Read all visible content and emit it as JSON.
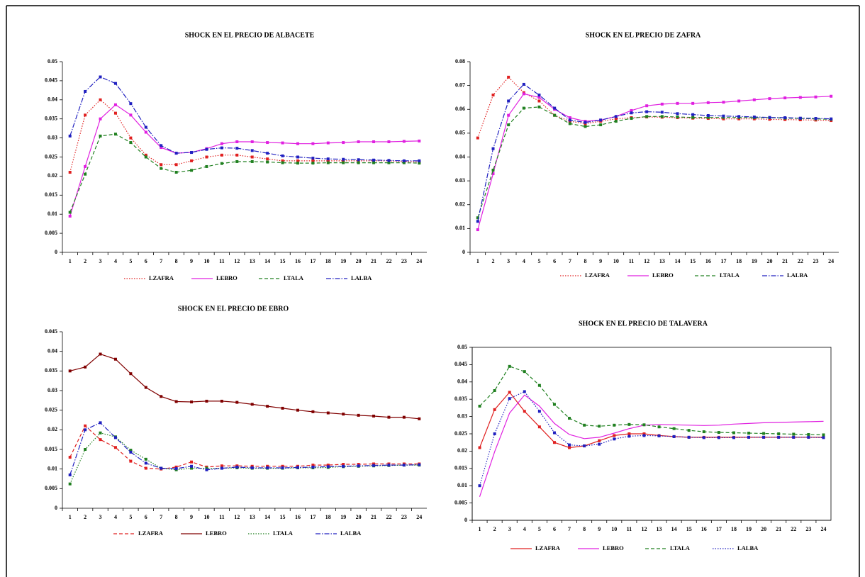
{
  "chart_data": [
    {
      "type": "line",
      "title": "SHOCK EN EL PRECIO DE ALBACETE",
      "categories": [
        "1",
        "2",
        "3",
        "4",
        "5",
        "6",
        "7",
        "8",
        "9",
        "10",
        "11",
        "12",
        "13",
        "14",
        "15",
        "16",
        "17",
        "18",
        "19",
        "20",
        "21",
        "22",
        "23",
        "24"
      ],
      "ylim": [
        0,
        0.05
      ],
      "yticks": [
        0,
        0.005,
        0.01,
        0.015,
        0.02,
        0.025,
        0.03,
        0.035,
        0.04,
        0.045,
        0.05
      ],
      "series": [
        {
          "name": "LZAFRA",
          "color": "#e02020",
          "style": "dotted",
          "markers": true,
          "values": [
            0.021,
            0.036,
            0.04,
            0.0365,
            0.03,
            0.0255,
            0.023,
            0.023,
            0.024,
            0.025,
            0.0255,
            0.0255,
            0.025,
            0.0245,
            0.024,
            0.024,
            0.024,
            0.024,
            0.024,
            0.024,
            0.024,
            0.024,
            0.0238,
            0.0237
          ]
        },
        {
          "name": "LEBRO",
          "color": "#e020e0",
          "style": "solid",
          "markers": true,
          "values": [
            0.0095,
            0.0225,
            0.035,
            0.0387,
            0.036,
            0.0315,
            0.0275,
            0.026,
            0.0262,
            0.0272,
            0.0285,
            0.029,
            0.029,
            0.0288,
            0.0287,
            0.0285,
            0.0285,
            0.0287,
            0.0288,
            0.029,
            0.029,
            0.029,
            0.0291,
            0.0292
          ]
        },
        {
          "name": "LTALA",
          "color": "#208020",
          "style": "dashed",
          "markers": true,
          "values": [
            0.0105,
            0.0205,
            0.0305,
            0.031,
            0.0288,
            0.025,
            0.022,
            0.021,
            0.0215,
            0.0225,
            0.0233,
            0.0238,
            0.0238,
            0.0237,
            0.0235,
            0.0234,
            0.0234,
            0.0235,
            0.0235,
            0.0235,
            0.0235,
            0.0235,
            0.0235,
            0.0234
          ]
        },
        {
          "name": "LALBA",
          "color": "#2020c0",
          "style": "dashdot",
          "markers": true,
          "values": [
            0.0305,
            0.0422,
            0.046,
            0.0443,
            0.039,
            0.0328,
            0.028,
            0.026,
            0.0262,
            0.027,
            0.0274,
            0.0273,
            0.0267,
            0.026,
            0.0253,
            0.025,
            0.0247,
            0.0245,
            0.0244,
            0.0243,
            0.0242,
            0.0241,
            0.024,
            0.024
          ]
        }
      ]
    },
    {
      "type": "line",
      "title": "SHOCK EN EL PRECIO DE ZAFRA",
      "categories": [
        "1",
        "2",
        "3",
        "4",
        "5",
        "6",
        "7",
        "8",
        "9",
        "10",
        "11",
        "12",
        "13",
        "14",
        "15",
        "16",
        "17",
        "18",
        "19",
        "20",
        "21",
        "22",
        "23",
        "24"
      ],
      "ylim": [
        0,
        0.08
      ],
      "yticks": [
        0,
        0.01,
        0.02,
        0.03,
        0.04,
        0.05,
        0.06,
        0.07,
        0.08
      ],
      "series": [
        {
          "name": "LZAFRA",
          "color": "#e02020",
          "style": "dotted",
          "markers": true,
          "values": [
            0.048,
            0.066,
            0.0735,
            0.067,
            0.0635,
            0.0575,
            0.055,
            0.054,
            0.055,
            0.056,
            0.0565,
            0.0568,
            0.0567,
            0.0565,
            0.0563,
            0.0562,
            0.056,
            0.056,
            0.056,
            0.0558,
            0.0557,
            0.0556,
            0.0555,
            0.0553
          ]
        },
        {
          "name": "LEBRO",
          "color": "#e020e0",
          "style": "solid",
          "markers": true,
          "values": [
            0.0095,
            0.033,
            0.0575,
            0.0665,
            0.065,
            0.06,
            0.0565,
            0.055,
            0.0555,
            0.057,
            0.0595,
            0.0615,
            0.0622,
            0.0625,
            0.0625,
            0.0628,
            0.063,
            0.0635,
            0.064,
            0.0645,
            0.0648,
            0.065,
            0.0652,
            0.0655
          ]
        },
        {
          "name": "LTALA",
          "color": "#208020",
          "style": "dashed",
          "markers": true,
          "values": [
            0.0145,
            0.0345,
            0.0535,
            0.0605,
            0.061,
            0.0575,
            0.054,
            0.0528,
            0.0535,
            0.055,
            0.0562,
            0.057,
            0.057,
            0.0568,
            0.0566,
            0.0566,
            0.0566,
            0.0566,
            0.0565,
            0.0565,
            0.0563,
            0.0562,
            0.056,
            0.0558
          ]
        },
        {
          "name": "LALBA",
          "color": "#2020c0",
          "style": "dashdot",
          "markers": true,
          "values": [
            0.013,
            0.0435,
            0.0635,
            0.0705,
            0.066,
            0.0605,
            0.0555,
            0.0545,
            0.0555,
            0.057,
            0.0585,
            0.059,
            0.0588,
            0.0582,
            0.0578,
            0.0574,
            0.0572,
            0.057,
            0.0568,
            0.0566,
            0.0565,
            0.0563,
            0.0562,
            0.056
          ]
        }
      ]
    },
    {
      "type": "line",
      "title": "SHOCK EN EL PRECIO DE EBRO",
      "categories": [
        "1",
        "2",
        "3",
        "4",
        "5",
        "6",
        "7",
        "8",
        "9",
        "10",
        "11",
        "12",
        "13",
        "14",
        "15",
        "16",
        "17",
        "18",
        "19",
        "20",
        "21",
        "22",
        "23",
        "24"
      ],
      "ylim": [
        0,
        0.045
      ],
      "yticks": [
        0,
        0.005,
        0.01,
        0.015,
        0.02,
        0.025,
        0.03,
        0.035,
        0.04,
        0.045
      ],
      "series": [
        {
          "name": "LZAFRA",
          "color": "#e02020",
          "style": "dashed",
          "markers": true,
          "values": [
            0.013,
            0.021,
            0.0175,
            0.0155,
            0.012,
            0.0102,
            0.01,
            0.0105,
            0.0118,
            0.0105,
            0.0108,
            0.0108,
            0.0107,
            0.0107,
            0.0107,
            0.0107,
            0.011,
            0.011,
            0.0112,
            0.0112,
            0.0113,
            0.0113,
            0.0113,
            0.0113
          ]
        },
        {
          "name": "LEBRO",
          "color": "#800000",
          "style": "solid",
          "markers": true,
          "values": [
            0.035,
            0.036,
            0.0393,
            0.038,
            0.0343,
            0.0308,
            0.0285,
            0.0272,
            0.0271,
            0.0273,
            0.0273,
            0.027,
            0.0265,
            0.026,
            0.0255,
            0.025,
            0.0246,
            0.0243,
            0.024,
            0.0237,
            0.0235,
            0.0232,
            0.0232,
            0.0228
          ]
        },
        {
          "name": "LTALA",
          "color": "#208020",
          "style": "dotted",
          "markers": true,
          "values": [
            0.0062,
            0.015,
            0.0192,
            0.0182,
            0.0148,
            0.0125,
            0.0102,
            0.0098,
            0.0102,
            0.0102,
            0.0102,
            0.0103,
            0.0102,
            0.0102,
            0.0102,
            0.0103,
            0.0103,
            0.0104,
            0.0106,
            0.0107,
            0.0108,
            0.0109,
            0.011,
            0.011
          ]
        },
        {
          "name": "LALBA",
          "color": "#2020c0",
          "style": "dashdot",
          "markers": true,
          "values": [
            0.0085,
            0.02,
            0.0218,
            0.018,
            0.0143,
            0.0115,
            0.0102,
            0.0101,
            0.0107,
            0.0098,
            0.0102,
            0.0105,
            0.0103,
            0.0103,
            0.0103,
            0.0104,
            0.0105,
            0.0106,
            0.0107,
            0.0108,
            0.0109,
            0.011,
            0.011,
            0.0111
          ]
        }
      ]
    },
    {
      "type": "line",
      "title": "SHOCK EN EL PRECIO DE TALAVERA",
      "categories": [
        "1",
        "2",
        "3",
        "4",
        "5",
        "6",
        "7",
        "8",
        "9",
        "10",
        "11",
        "12",
        "13",
        "14",
        "15",
        "16",
        "17",
        "18",
        "19",
        "20",
        "21",
        "22",
        "23",
        "24"
      ],
      "ylim": [
        0,
        0.05
      ],
      "yticks": [
        0,
        0.005,
        0.01,
        0.015,
        0.02,
        0.025,
        0.03,
        0.035,
        0.04,
        0.045,
        0.05
      ],
      "series": [
        {
          "name": "LZAFRA",
          "color": "#e02020",
          "style": "solid",
          "markers": true,
          "values": [
            0.021,
            0.032,
            0.037,
            0.0315,
            0.027,
            0.0225,
            0.021,
            0.0215,
            0.023,
            0.0245,
            0.025,
            0.025,
            0.0245,
            0.0242,
            0.024,
            0.024,
            0.024,
            0.024,
            0.024,
            0.024,
            0.024,
            0.024,
            0.024,
            0.024
          ]
        },
        {
          "name": "LEBRO",
          "color": "#e020e0",
          "style": "solid",
          "markers": false,
          "values": [
            0.0068,
            0.0198,
            0.031,
            0.0362,
            0.033,
            0.028,
            0.0248,
            0.0236,
            0.024,
            0.0252,
            0.0265,
            0.0275,
            0.0277,
            0.0276,
            0.0275,
            0.0274,
            0.0275,
            0.0278,
            0.028,
            0.0282,
            0.0283,
            0.0284,
            0.0285,
            0.0286
          ]
        },
        {
          "name": "LTALA",
          "color": "#208020",
          "style": "dashed",
          "markers": true,
          "values": [
            0.033,
            0.0375,
            0.0445,
            0.043,
            0.039,
            0.0335,
            0.0295,
            0.0275,
            0.0272,
            0.0275,
            0.0277,
            0.0276,
            0.027,
            0.0265,
            0.026,
            0.0256,
            0.0254,
            0.0253,
            0.0252,
            0.0251,
            0.025,
            0.0249,
            0.0248,
            0.0247
          ]
        },
        {
          "name": "LALBA",
          "color": "#2020c0",
          "style": "dotted",
          "markers": true,
          "values": [
            0.01,
            0.025,
            0.0352,
            0.0372,
            0.0315,
            0.0253,
            0.0218,
            0.0215,
            0.022,
            0.0235,
            0.0243,
            0.0245,
            0.0244,
            0.0242,
            0.024,
            0.0239,
            0.0239,
            0.0239,
            0.024,
            0.024,
            0.024,
            0.024,
            0.024,
            0.0239
          ]
        }
      ]
    }
  ]
}
